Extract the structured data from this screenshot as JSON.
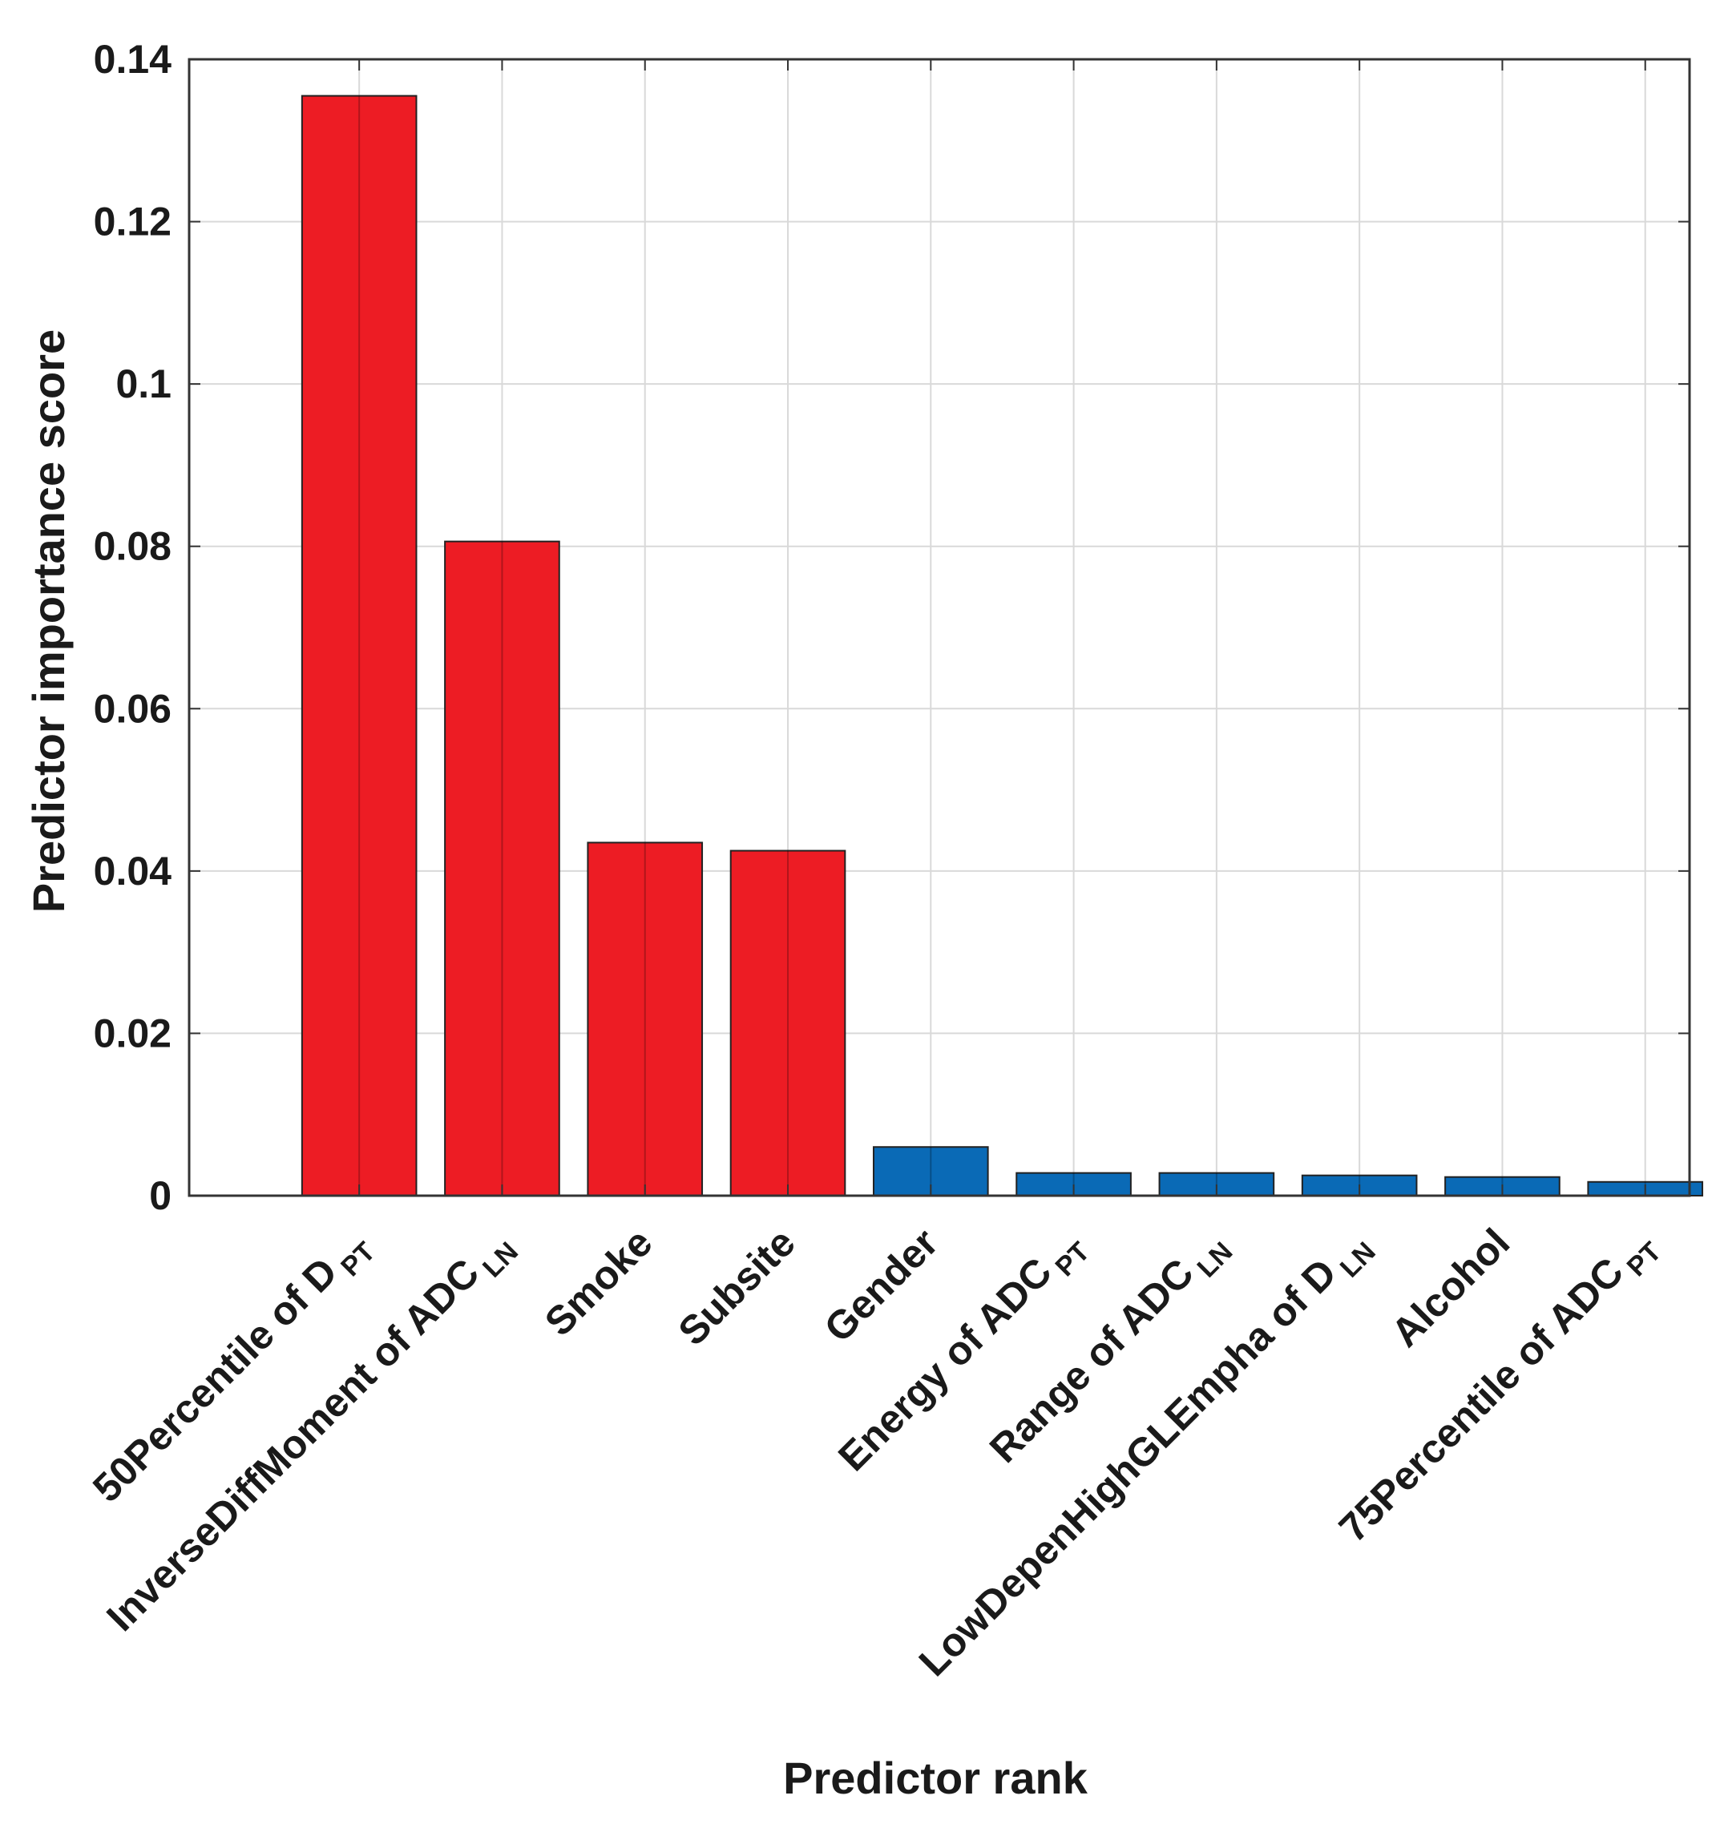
{
  "chart_data": {
    "type": "bar",
    "title": "",
    "xlabel": "Predictor rank",
    "ylabel": "Predictor importance score",
    "ylim": [
      0,
      0.14
    ],
    "yticks": [
      0,
      0.02,
      0.04,
      0.06,
      0.08,
      0.1,
      0.12,
      0.14
    ],
    "ytick_labels": [
      "0",
      "0.02",
      "0.04",
      "0.06",
      "0.08",
      "0.1",
      "0.12",
      "0.14"
    ],
    "grid": true,
    "categories": [
      {
        "base": "50Percentile of D",
        "sub": "PT",
        "label": "50Percentile of D PT"
      },
      {
        "base": "InverseDiffMoment of ADC",
        "sub": "LN",
        "label": "InverseDiffMoment of ADC LN"
      },
      {
        "base": "Smoke",
        "sub": "",
        "label": "Smoke"
      },
      {
        "base": "Subsite",
        "sub": "",
        "label": "Subsite"
      },
      {
        "base": "Gender",
        "sub": "",
        "label": "Gender"
      },
      {
        "base": "Energy of ADC",
        "sub": "PT",
        "label": "Energy of ADC PT"
      },
      {
        "base": "Range of ADC",
        "sub": "LN",
        "label": "Range of ADC LN"
      },
      {
        "base": "LowDepenHighGLEmpha of D",
        "sub": "LN",
        "label": "LowDepenHighGLEmpha of D LN"
      },
      {
        "base": "Alcohol",
        "sub": "",
        "label": "Alcohol"
      },
      {
        "base": "75Percentile of ADC",
        "sub": "PT",
        "label": "75Percentile of ADC PT"
      }
    ],
    "values": [
      0.1355,
      0.0806,
      0.0435,
      0.0425,
      0.006,
      0.0028,
      0.0028,
      0.0025,
      0.0023,
      0.0017
    ],
    "bar_colors": [
      "#ed1c24",
      "#ed1c24",
      "#ed1c24",
      "#ed1c24",
      "#0a6ab6",
      "#0a6ab6",
      "#0a6ab6",
      "#0a6ab6",
      "#0a6ab6",
      "#0a6ab6"
    ],
    "colors": {
      "selected": "#ed1c24",
      "other": "#0a6ab6",
      "bar_edge": "#222222",
      "grid": "#d9d9d9",
      "axis": "#333333"
    }
  }
}
